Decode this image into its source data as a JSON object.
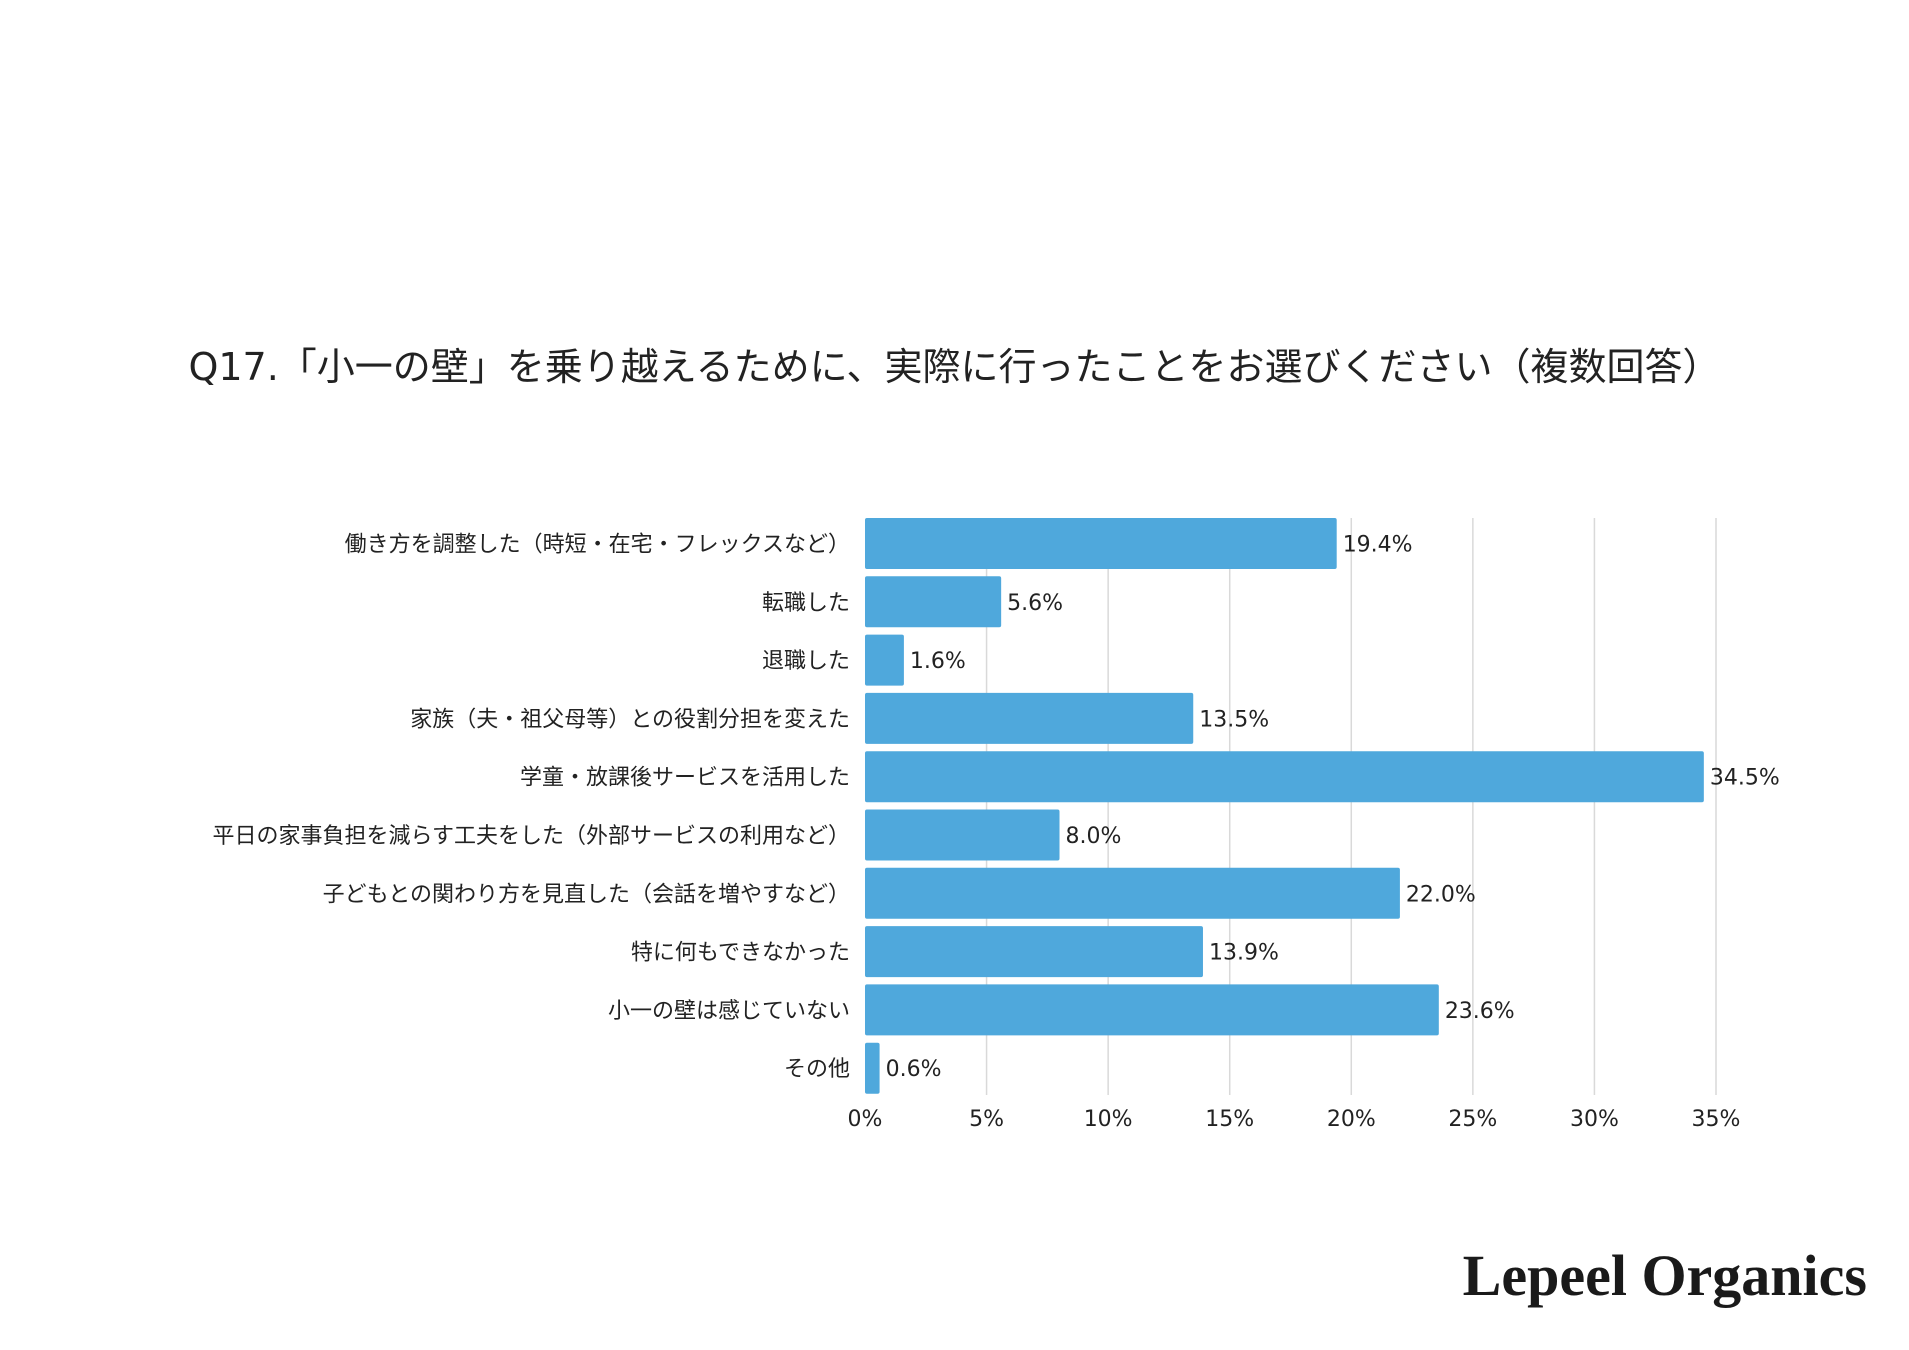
{
  "chart_data": {
    "type": "bar",
    "orientation": "horizontal",
    "title": "Q17.「小一の壁」を乗り越えるために、実際に行ったことをお選びください（複数回答）",
    "categories": [
      "働き方を調整した（時短・在宅・フレックスなど）",
      "転職した",
      "退職した",
      "家族（夫・祖父母等）との役割分担を変えた",
      "学童・放課後サービスを活用した",
      "平日の家事負担を減らす工夫をした（外部サービスの利用など）",
      "子どもとの関わり方を見直した（会話を増やすなど）",
      "特に何もできなかった",
      "小一の壁は感じていない",
      "その他"
    ],
    "values": [
      19.4,
      5.6,
      1.6,
      13.5,
      34.5,
      8.0,
      22.0,
      13.9,
      23.6,
      0.6
    ],
    "data_labels": [
      "19.4%",
      "5.6%",
      "1.6%",
      "13.5%",
      "34.5%",
      "8.0%",
      "22.0%",
      "13.9%",
      "23.6%",
      "0.6%"
    ],
    "xlim": [
      0,
      35
    ],
    "x_ticks": [
      "0%",
      "5%",
      "10%",
      "15%",
      "20%",
      "25%",
      "30%",
      "35%"
    ],
    "x_tick_values": [
      0,
      5,
      10,
      15,
      20,
      25,
      30,
      35
    ],
    "grid": "vertical",
    "bar_color": "#4fa8dc",
    "grid_color": "#d9d9d9"
  },
  "brand": "Lepeel Organics"
}
